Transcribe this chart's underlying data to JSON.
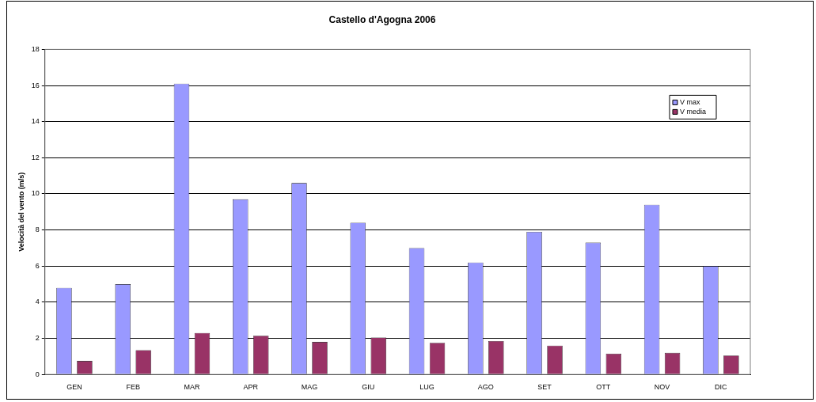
{
  "chart_data": {
    "type": "bar",
    "title": "Castello d'Agogna 2006",
    "ylabel": "Velocità del vento (m/s)",
    "categories": [
      "GEN",
      "FEB",
      "MAR",
      "APR",
      "MAG",
      "GIU",
      "LUG",
      "AGO",
      "SET",
      "OTT",
      "NOV",
      "DIC"
    ],
    "series": [
      {
        "name": "V max",
        "color": "#9999ff",
        "values": [
          4.8,
          5.0,
          16.1,
          9.7,
          10.6,
          8.4,
          7.0,
          6.2,
          7.9,
          7.3,
          9.4,
          6.0
        ]
      },
      {
        "name": "V media",
        "color": "#993366",
        "values": [
          0.75,
          1.35,
          2.3,
          2.15,
          1.8,
          2.05,
          1.75,
          1.85,
          1.6,
          1.15,
          1.2,
          1.05
        ]
      }
    ],
    "ylim": [
      0,
      18
    ],
    "yticks": [
      0,
      2,
      4,
      6,
      8,
      10,
      12,
      14,
      16,
      18
    ],
    "grid": "y",
    "legend": "top right"
  }
}
